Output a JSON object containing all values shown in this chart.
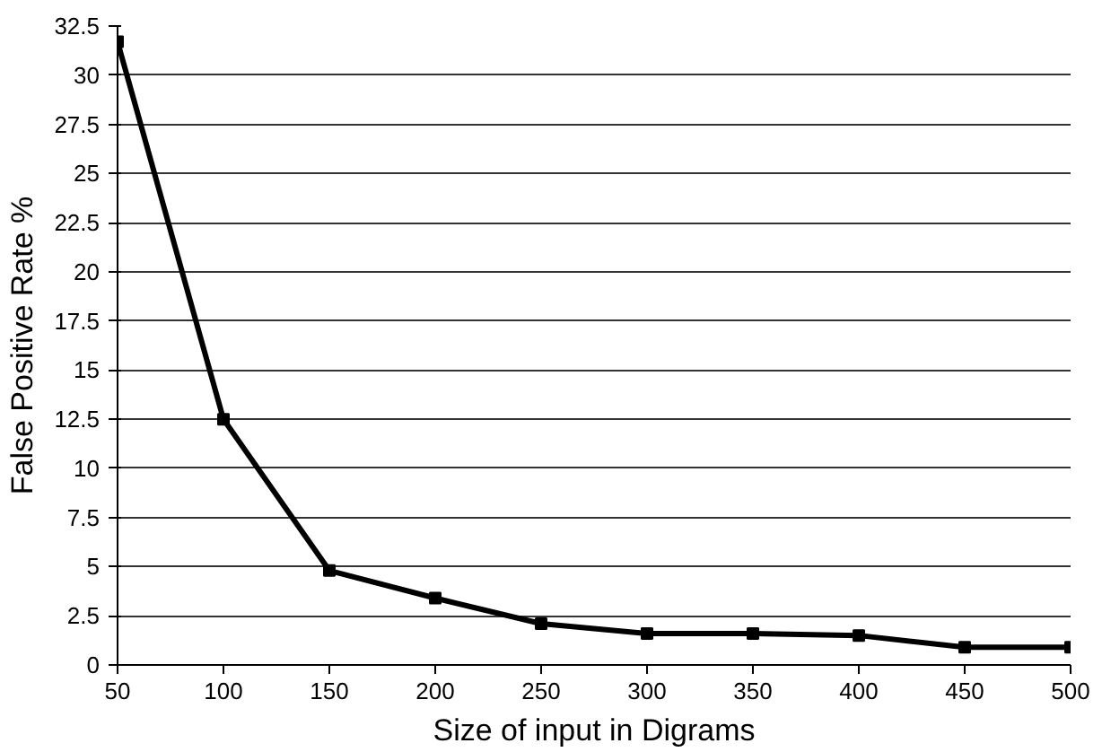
{
  "chart_data": {
    "type": "line",
    "xlabel": "Size of input in Digrams",
    "ylabel": "False Positive Rate %",
    "x": [
      50,
      100,
      150,
      200,
      250,
      300,
      350,
      400,
      450,
      500
    ],
    "series": [
      {
        "color": "#000000",
        "values": [
          31.7,
          12.5,
          4.8,
          3.4,
          2.1,
          1.6,
          1.6,
          1.5,
          0.9,
          0.9
        ]
      }
    ],
    "xlim": [
      50,
      500
    ],
    "xticks": [
      50,
      100,
      150,
      200,
      250,
      300,
      350,
      400,
      450,
      500
    ],
    "ylim": [
      0,
      32.5
    ],
    "yticks": [
      0,
      2.5,
      5,
      7.5,
      10,
      12.5,
      15,
      17.5,
      20,
      22.5,
      25,
      27.5,
      30,
      32.5
    ],
    "grid": "y",
    "marker": "square",
    "line_style": "solid"
  }
}
